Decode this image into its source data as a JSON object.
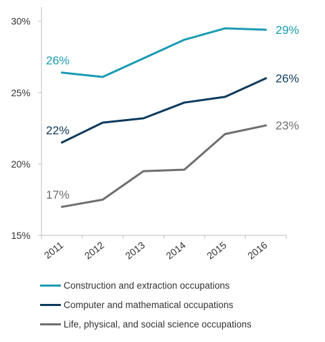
{
  "chart_data": {
    "type": "line",
    "title": "",
    "xlabel": "",
    "ylabel": "",
    "x": [
      "2011",
      "2012",
      "2013",
      "2014",
      "2015",
      "2016"
    ],
    "ylim": [
      15,
      31
    ],
    "y_ticks": [
      "15%",
      "20%",
      "25%",
      "30%"
    ],
    "y_tick_values": [
      15,
      20,
      25,
      30
    ],
    "grid": false,
    "legend_placement": "bottom",
    "series": [
      {
        "name": "Construction and extraction occupations",
        "color": "#1a9bb3",
        "values": [
          26.4,
          26.1,
          27.4,
          28.7,
          29.5,
          29.4
        ],
        "start_label": "26%",
        "end_label": "29%"
      },
      {
        "name": "Computer and mathematical occupations",
        "color": "#0d3a5c",
        "values": [
          21.5,
          22.9,
          23.2,
          24.3,
          24.7,
          26.0
        ],
        "start_label": "22%",
        "end_label": "26%"
      },
      {
        "name": "Life, physical, and social science occupations",
        "color": "#6d6e70",
        "values": [
          17.0,
          17.5,
          19.5,
          19.6,
          22.1,
          22.7
        ],
        "start_label": "17%",
        "end_label": "23%"
      }
    ]
  }
}
